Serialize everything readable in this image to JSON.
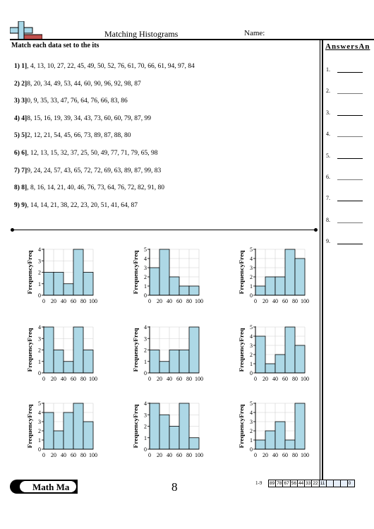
{
  "header": {
    "title": "Matching Histograms",
    "name_label": "Name:",
    "instructions": "Match each data set to the its"
  },
  "answers": {
    "title": "AnswersAn",
    "items": [
      "1.",
      "2.",
      "3.",
      "4.",
      "5.",
      "6.",
      "7.",
      "8.",
      "9."
    ]
  },
  "problems": [
    {
      "label": "1) 1",
      "mark": "]",
      "data": ", 4, 13, 10, 27, 22, 45, 49, 50, 52, 76, 61, 70, 66, 61, 94, 97, 84"
    },
    {
      "label": "2) 2",
      "mark": "]",
      "data": "8, 20, 34, 49, 53, 44, 60, 90, 96, 92, 98, 87"
    },
    {
      "label": "3) 3",
      "mark": "]",
      "data": "0, 9, 35, 33, 47, 76, 64, 76, 66, 83, 86"
    },
    {
      "label": "4) 4",
      "mark": "]",
      "data": "8, 15, 16, 19, 39, 34, 43, 73, 60, 60, 79, 87, 99"
    },
    {
      "label": "5) 5",
      "mark": "]",
      "data": "2, 12, 21, 54, 45, 66, 73, 89, 87, 88, 80"
    },
    {
      "label": "6) 6",
      "mark": "]",
      "data": ", 12, 13, 15, 32, 37, 25, 50, 49, 77, 71, 79, 65, 98"
    },
    {
      "label": "7) 7",
      "mark": "]",
      "data": "9, 24, 24, 57, 43, 65, 72, 72, 69, 63, 89, 87, 99, 83"
    },
    {
      "label": "8) 8",
      "mark": "]",
      "data": ", 8, 16, 14, 21, 40, 46, 76, 73, 64, 76, 72, 82, 91, 80"
    },
    {
      "label": "9) 9",
      "mark": ")",
      "data": ", 14, 14, 21, 38, 22, 23, 20, 51, 41, 64, 87"
    }
  ],
  "chart_data": [
    {
      "type": "bar",
      "ylabel": "FrequencyFreq",
      "categories": [
        "0-20",
        "20-40",
        "40-60",
        "60-80",
        "80-100"
      ],
      "values": [
        2,
        2,
        1,
        4,
        2
      ],
      "ylim": [
        0,
        4
      ],
      "x_ticks": [
        "0",
        "20",
        "40",
        "60",
        "80",
        "100"
      ],
      "y_ticks": [
        "0",
        "1",
        "2",
        "3",
        "4"
      ]
    },
    {
      "type": "bar",
      "ylabel": "FrequencyFreq",
      "categories": [
        "0-20",
        "20-40",
        "40-60",
        "60-80",
        "80-100"
      ],
      "values": [
        3,
        5,
        2,
        1,
        1
      ],
      "ylim": [
        0,
        5
      ],
      "x_ticks": [
        "0",
        "20",
        "40",
        "60",
        "80",
        "100"
      ],
      "y_ticks": [
        "0",
        "1",
        "2",
        "3",
        "4",
        "5"
      ]
    },
    {
      "type": "bar",
      "ylabel": "FrequencyFreq",
      "categories": [
        "0-20",
        "20-40",
        "40-60",
        "60-80",
        "80-100"
      ],
      "values": [
        1,
        2,
        2,
        5,
        4
      ],
      "ylim": [
        0,
        5
      ],
      "x_ticks": [
        "0",
        "20",
        "40",
        "60",
        "80",
        "100"
      ],
      "y_ticks": [
        "0",
        "1",
        "2",
        "3",
        "4",
        "5"
      ]
    },
    {
      "type": "bar",
      "ylabel": "FrequencyFreq",
      "categories": [
        "0-20",
        "20-40",
        "40-60",
        "60-80",
        "80-100"
      ],
      "values": [
        4,
        2,
        1,
        4,
        2
      ],
      "ylim": [
        0,
        4
      ],
      "x_ticks": [
        "0",
        "20",
        "40",
        "60",
        "80",
        "100"
      ],
      "y_ticks": [
        "0",
        "1",
        "2",
        "3",
        "4"
      ]
    },
    {
      "type": "bar",
      "ylabel": "FrequencyFreq",
      "categories": [
        "0-20",
        "20-40",
        "40-60",
        "60-80",
        "80-100"
      ],
      "values": [
        2,
        1,
        2,
        2,
        4
      ],
      "ylim": [
        0,
        4
      ],
      "x_ticks": [
        "0",
        "20",
        "40",
        "60",
        "80",
        "100"
      ],
      "y_ticks": [
        "0",
        "1",
        "2",
        "3",
        "4"
      ]
    },
    {
      "type": "bar",
      "ylabel": "FrequencyFreq",
      "categories": [
        "0-20",
        "20-40",
        "40-60",
        "60-80",
        "80-100"
      ],
      "values": [
        4,
        1,
        2,
        5,
        3
      ],
      "ylim": [
        0,
        5
      ],
      "x_ticks": [
        "0",
        "20",
        "40",
        "60",
        "80",
        "100"
      ],
      "y_ticks": [
        "0",
        "1",
        "2",
        "3",
        "4",
        "5"
      ]
    },
    {
      "type": "bar",
      "ylabel": "FrequencyFreq",
      "categories": [
        "0-20",
        "20-40",
        "40-60",
        "60-80",
        "80-100"
      ],
      "values": [
        4,
        2,
        4,
        5,
        3
      ],
      "ylim": [
        0,
        5
      ],
      "x_ticks": [
        "0",
        "20",
        "40",
        "60",
        "80",
        "100"
      ],
      "y_ticks": [
        "0",
        "1",
        "2",
        "3",
        "4",
        "5"
      ]
    },
    {
      "type": "bar",
      "ylabel": "FrequencyFreq",
      "categories": [
        "0-20",
        "20-40",
        "40-60",
        "60-80",
        "80-100"
      ],
      "values": [
        4,
        3,
        2,
        4,
        1
      ],
      "ylim": [
        0,
        4
      ],
      "x_ticks": [
        "0",
        "20",
        "40",
        "60",
        "80",
        "100"
      ],
      "y_ticks": [
        "0",
        "1",
        "2",
        "3",
        "4"
      ]
    },
    {
      "type": "bar",
      "ylabel": "FrequencyFreq",
      "categories": [
        "0-20",
        "20-40",
        "40-60",
        "60-80",
        "80-100"
      ],
      "values": [
        1,
        2,
        3,
        1,
        5
      ],
      "ylim": [
        0,
        5
      ],
      "x_ticks": [
        "0",
        "20",
        "40",
        "60",
        "80",
        "100"
      ],
      "y_ticks": [
        "0",
        "1",
        "2",
        "3",
        "4",
        "5"
      ]
    }
  ],
  "colors": {
    "bar_fill": "#add8e6",
    "grid": "#d0d0d0",
    "logo_blue": "#a8d8e8",
    "logo_red": "#c0504d"
  },
  "footer": {
    "logo_text": "Math Ma",
    "page": "8",
    "key_label": "1-9",
    "key_cells": [
      "89",
      "78",
      "67",
      "56",
      "44",
      "33",
      "22",
      "11",
      "",
      "",
      "",
      "0"
    ]
  }
}
